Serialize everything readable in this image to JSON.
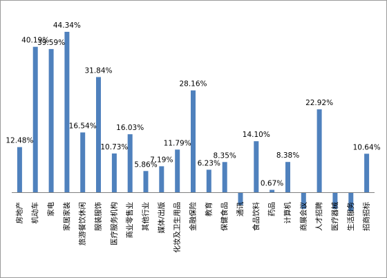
{
  "chart_data": {
    "type": "bar",
    "categories": [
      "房地产",
      "机动车",
      "家电",
      "家居家装",
      "旅游餐饮休闲",
      "服装服饰",
      "医疗服务机构",
      "商业零售业",
      "其他行业",
      "媒体/出版",
      "化妆及卫生用品",
      "金融保险",
      "教育",
      "保健食品",
      "通讯",
      "食品饮料",
      "药品",
      "计算机",
      "商展会议",
      "人才招聘",
      "医疗器械",
      "生活服务",
      "招商招标"
    ],
    "values": [
      12.48,
      40.19,
      39.59,
      44.34,
      16.54,
      31.84,
      10.73,
      16.03,
      5.86,
      7.19,
      11.79,
      28.16,
      6.23,
      8.35,
      -3.5,
      14.1,
      0.67,
      8.38,
      -4.6,
      22.92,
      -4.6,
      -5.2,
      10.64
    ],
    "value_labels": [
      "12.48%",
      "40.19%",
      "39.59%",
      "44.34%",
      "16.54%",
      "31.84%",
      "10.73%",
      "16.03%",
      "5.86%",
      "7.19%",
      "11.79%",
      "28.16%",
      "6.23%",
      "8.35%",
      "",
      "14.10%",
      "0.67%",
      "8.38%",
      "",
      "22.92%",
      "",
      "",
      "10.64%"
    ],
    "title": "",
    "xlabel": "",
    "ylabel": "",
    "ylim": [
      -6,
      46
    ],
    "color": "#4f81bd",
    "grid": false,
    "legend": "none"
  }
}
